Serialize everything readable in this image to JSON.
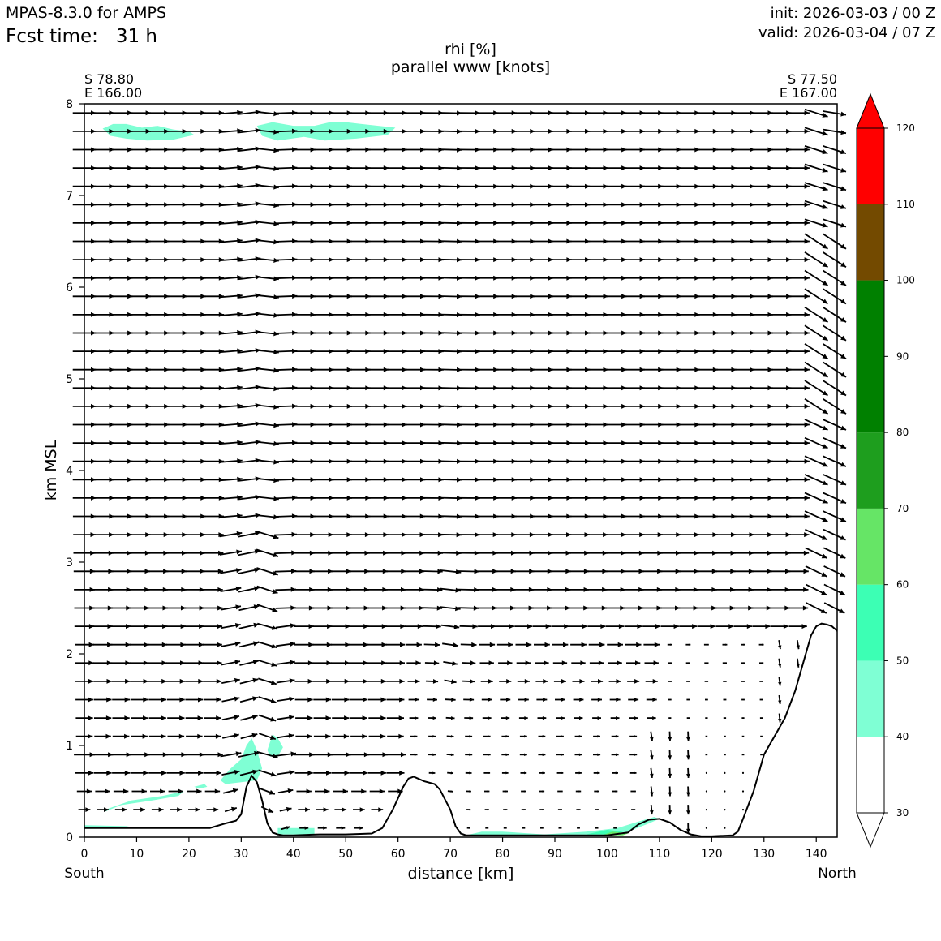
{
  "header": {
    "model": "MPAS-8.3.0 for AMPS",
    "fcst_time": "Fcst time:   31 h",
    "init": "init: 2026-03-03 / 00 Z",
    "valid": "valid: 2026-03-04 / 07 Z"
  },
  "chart_data": {
    "type": "cross-section",
    "title": "rhi [%]",
    "subtitle": "parallel www [knots]",
    "xlabel": "distance [km]",
    "ylabel": "km MSL",
    "xlim": [
      0,
      144
    ],
    "ylim": [
      0,
      8
    ],
    "x_ticks": [
      0,
      10,
      20,
      30,
      40,
      50,
      60,
      70,
      80,
      90,
      100,
      110,
      120,
      130,
      140
    ],
    "y_ticks": [
      0,
      1,
      2,
      3,
      4,
      5,
      6,
      7,
      8
    ],
    "start_point": {
      "lat": "S 78.80",
      "lon": "E 166.00"
    },
    "end_point": {
      "lat": "S 77.50",
      "lon": "E 167.00"
    },
    "left_label": "South",
    "right_label": "North",
    "terrain": {
      "x": [
        0,
        10,
        20,
        24,
        27,
        29,
        30,
        31,
        32,
        33,
        34,
        35,
        36,
        37,
        38,
        40,
        45,
        50,
        55,
        57,
        59,
        61,
        62,
        63,
        65,
        67,
        68,
        70,
        71,
        72,
        73,
        75,
        80,
        90,
        100,
        104,
        106,
        108,
        110,
        112,
        114,
        116,
        118,
        120,
        124,
        125,
        126,
        128,
        130,
        131,
        132,
        134,
        136,
        138,
        139,
        140,
        141,
        142,
        143,
        144
      ],
      "y": [
        0.1,
        0.1,
        0.1,
        0.1,
        0.15,
        0.18,
        0.25,
        0.55,
        0.67,
        0.6,
        0.4,
        0.15,
        0.05,
        0.03,
        0.02,
        0.02,
        0.03,
        0.03,
        0.04,
        0.1,
        0.3,
        0.55,
        0.64,
        0.66,
        0.61,
        0.58,
        0.52,
        0.3,
        0.12,
        0.04,
        0.02,
        0.02,
        0.02,
        0.02,
        0.02,
        0.05,
        0.14,
        0.19,
        0.2,
        0.16,
        0.08,
        0.03,
        0.01,
        0.01,
        0.02,
        0.06,
        0.2,
        0.5,
        0.9,
        1.0,
        1.1,
        1.3,
        1.6,
        2.0,
        2.2,
        2.3,
        2.33,
        2.32,
        2.3,
        2.25
      ]
    },
    "rhi_regions": [
      {
        "level": "40-50",
        "color": "#7fffd4",
        "points": [
          [
            3.5,
            7.73
          ],
          [
            5.5,
            7.78
          ],
          [
            8,
            7.78
          ],
          [
            11,
            7.74
          ],
          [
            14,
            7.76
          ],
          [
            17,
            7.72
          ],
          [
            20,
            7.7
          ],
          [
            21,
            7.66
          ],
          [
            17,
            7.61
          ],
          [
            12,
            7.6
          ],
          [
            8,
            7.62
          ],
          [
            5,
            7.65
          ]
        ]
      },
      {
        "level": "40-50",
        "color": "#7fffd4",
        "points": [
          [
            33,
            7.76
          ],
          [
            36,
            7.8
          ],
          [
            40,
            7.76
          ],
          [
            44,
            7.76
          ],
          [
            47,
            7.8
          ],
          [
            50,
            7.8
          ],
          [
            53,
            7.78
          ],
          [
            59.5,
            7.74
          ],
          [
            58,
            7.66
          ],
          [
            52,
            7.62
          ],
          [
            46,
            7.6
          ],
          [
            42,
            7.64
          ],
          [
            37,
            7.6
          ],
          [
            34,
            7.65
          ]
        ]
      },
      {
        "level": "40-50",
        "color": "#7fffd4",
        "points": [
          [
            26,
            0.62
          ],
          [
            28,
            0.75
          ],
          [
            30,
            0.85
          ],
          [
            31,
            1.0
          ],
          [
            32,
            1.08
          ],
          [
            33,
            0.95
          ],
          [
            34,
            0.75
          ],
          [
            33,
            0.62
          ],
          [
            30,
            0.6
          ],
          [
            27,
            0.58
          ]
        ]
      },
      {
        "level": "40-50",
        "color": "#7fffd4",
        "points": [
          [
            35,
            0.95
          ],
          [
            36,
            1.12
          ],
          [
            37,
            1.08
          ],
          [
            38,
            0.98
          ],
          [
            37,
            0.88
          ],
          [
            35.5,
            0.88
          ]
        ]
      },
      {
        "level": "40-50",
        "color": "#7fffd4",
        "points": [
          [
            4,
            0.3
          ],
          [
            9,
            0.4
          ],
          [
            15,
            0.45
          ],
          [
            19,
            0.5
          ],
          [
            18,
            0.45
          ],
          [
            13,
            0.4
          ],
          [
            7,
            0.35
          ],
          [
            4,
            0.28
          ]
        ]
      },
      {
        "level": "40-50",
        "color": "#7fffd4",
        "points": [
          [
            21,
            0.55
          ],
          [
            23,
            0.58
          ],
          [
            23.5,
            0.55
          ],
          [
            22,
            0.53
          ]
        ]
      },
      {
        "level": "40-50",
        "color": "#7fffd4",
        "points": [
          [
            0,
            0.09
          ],
          [
            10,
            0.1
          ],
          [
            8,
            0.12
          ],
          [
            0,
            0.13
          ]
        ]
      },
      {
        "level": "40-50",
        "color": "#7fffd4",
        "points": [
          [
            37,
            0.03
          ],
          [
            37,
            0.1
          ],
          [
            44,
            0.1
          ],
          [
            44,
            0.03
          ]
        ]
      },
      {
        "level": "40-50",
        "color": "#7fffd4",
        "points": [
          [
            73,
            0.02
          ],
          [
            76,
            0.06
          ],
          [
            80,
            0.06
          ],
          [
            88,
            0.03
          ],
          [
            96,
            0.06
          ],
          [
            102,
            0.1
          ],
          [
            106,
            0.17
          ],
          [
            109,
            0.22
          ],
          [
            110,
            0.2
          ],
          [
            108,
            0.15
          ],
          [
            104,
            0.06
          ],
          [
            100,
            0.03
          ]
        ]
      },
      {
        "level": "50-60",
        "color": "#3cffb4",
        "points": [
          [
            96,
            0.03
          ],
          [
            100,
            0.08
          ],
          [
            103,
            0.06
          ],
          [
            101,
            0.03
          ]
        ]
      },
      {
        "level": "60-70",
        "color": "#66e566",
        "points": [
          [
            99,
            0.02
          ],
          [
            101,
            0.06
          ],
          [
            104,
            0.04
          ],
          [
            103,
            0.02
          ]
        ]
      }
    ],
    "wind_field": {
      "levels_km": [
        0.1,
        0.3,
        0.5,
        0.7,
        0.9,
        1.1,
        1.3,
        1.5,
        1.7,
        1.9,
        2.1,
        2.3,
        2.5,
        2.7,
        2.9,
        3.1,
        3.3,
        3.5,
        3.7,
        3.9,
        4.1,
        4.3,
        4.5,
        4.7,
        4.9,
        5.1,
        5.3,
        5.5,
        5.7,
        5.9,
        6.1,
        6.3,
        6.5,
        6.7,
        6.9,
        7.1,
        7.3,
        7.5,
        7.7,
        7.9
      ],
      "columns_km": [
        0,
        3.5,
        7,
        10.5,
        14,
        17.5,
        21,
        24.5,
        28,
        31.5,
        35,
        38.5,
        42,
        45.5,
        49,
        52.5,
        56,
        59.5,
        63,
        66.5,
        70,
        73.5,
        77,
        80.5,
        84,
        87.5,
        91,
        94.5,
        98,
        101.5,
        105,
        108.5,
        112,
        115.5,
        119,
        122.5,
        126,
        129.5,
        133,
        136.5,
        140,
        143.5
      ]
    },
    "colorbar": {
      "ticks": [
        30,
        40,
        50,
        60,
        70,
        80,
        90,
        100,
        110,
        120
      ],
      "levels": [
        {
          "from": 30,
          "to": 40,
          "color": "#ffffff"
        },
        {
          "from": 40,
          "to": 50,
          "color": "#7fffd4"
        },
        {
          "from": 50,
          "to": 60,
          "color": "#3cffb4"
        },
        {
          "from": 60,
          "to": 70,
          "color": "#66e566"
        },
        {
          "from": 70,
          "to": 80,
          "color": "#1e9e1e"
        },
        {
          "from": 80,
          "to": 100,
          "color": "#008000"
        },
        {
          "from": 100,
          "to": 110,
          "color": "#734a00"
        },
        {
          "from": 110,
          "to": 120,
          "color": "#ff0000"
        }
      ],
      "extend_min_color": "#ffffff",
      "extend_max_color": "#ff0000"
    }
  }
}
